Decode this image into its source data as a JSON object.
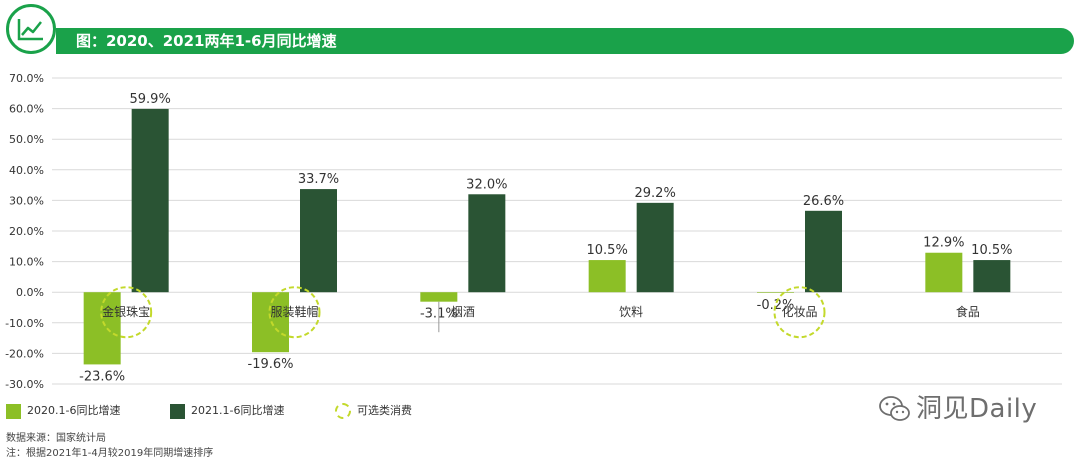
{
  "header": {
    "title": "图：2020、2021两年1-6月同比增速"
  },
  "chart_data": {
    "type": "bar",
    "categories": [
      "金银珠宝",
      "服装鞋帽",
      "烟酒",
      "饮料",
      "化妆品",
      "食品"
    ],
    "series": [
      {
        "name": "2020.1-6同比增速",
        "values": [
          -23.6,
          -19.6,
          -3.1,
          10.5,
          -0.2,
          12.9
        ],
        "color": "#8cbf26"
      },
      {
        "name": "2021.1-6同比增速",
        "values": [
          59.9,
          33.7,
          32.0,
          29.2,
          26.6,
          10.5
        ],
        "color": "#2a5434"
      }
    ],
    "value_labels": [
      [
        "-23.6%",
        "-19.6%",
        "-3.1%",
        "10.5%",
        "-0.2%",
        "12.9%"
      ],
      [
        "59.9%",
        "33.7%",
        "32.0%",
        "29.2%",
        "26.6%",
        "10.5%"
      ]
    ],
    "yticks": [
      "70.0%",
      "60.0%",
      "50.0%",
      "40.0%",
      "30.0%",
      "20.0%",
      "10.0%",
      "0.0%",
      "-10.0%",
      "-20.0%",
      "-30.0%"
    ],
    "ylim": [
      -30,
      70
    ],
    "grid": true,
    "highlighted_categories": [
      "金银珠宝",
      "服装鞋帽",
      "化妆品"
    ],
    "highlight_color": "#c3d92b"
  },
  "legend": {
    "series1": "2020.1-6同比增速",
    "series2": "2021.1-6同比增速",
    "highlight": "可选类消费"
  },
  "footer": {
    "source": "数据来源：国家统计局",
    "note": "注：根据2021年1-4月较2019年同期增速排序"
  },
  "watermark": {
    "text": "洞见Daily"
  },
  "colors": {
    "brand_green": "#1aa24a",
    "bar_light": "#8cbf26",
    "bar_dark": "#2a5434"
  }
}
